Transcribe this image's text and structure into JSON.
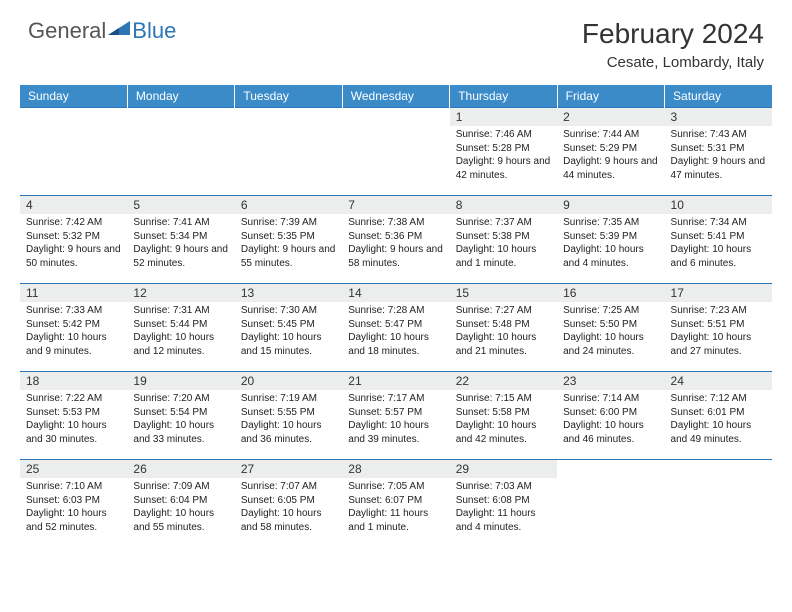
{
  "logo": {
    "text1": "General",
    "text2": "Blue"
  },
  "title": "February 2024",
  "location": "Cesate, Lombardy, Italy",
  "colors": {
    "header_bg": "#3b8bc9",
    "header_text": "#ffffff",
    "daynum_bg": "#eceded",
    "border": "#2e75b6",
    "logo_gray": "#555555",
    "logo_blue": "#2e75b6"
  },
  "day_headers": [
    "Sunday",
    "Monday",
    "Tuesday",
    "Wednesday",
    "Thursday",
    "Friday",
    "Saturday"
  ],
  "weeks": [
    [
      {
        "n": "",
        "sr": "",
        "ss": "",
        "dl": ""
      },
      {
        "n": "",
        "sr": "",
        "ss": "",
        "dl": ""
      },
      {
        "n": "",
        "sr": "",
        "ss": "",
        "dl": ""
      },
      {
        "n": "",
        "sr": "",
        "ss": "",
        "dl": ""
      },
      {
        "n": "1",
        "sr": "Sunrise: 7:46 AM",
        "ss": "Sunset: 5:28 PM",
        "dl": "Daylight: 9 hours and 42 minutes."
      },
      {
        "n": "2",
        "sr": "Sunrise: 7:44 AM",
        "ss": "Sunset: 5:29 PM",
        "dl": "Daylight: 9 hours and 44 minutes."
      },
      {
        "n": "3",
        "sr": "Sunrise: 7:43 AM",
        "ss": "Sunset: 5:31 PM",
        "dl": "Daylight: 9 hours and 47 minutes."
      }
    ],
    [
      {
        "n": "4",
        "sr": "Sunrise: 7:42 AM",
        "ss": "Sunset: 5:32 PM",
        "dl": "Daylight: 9 hours and 50 minutes."
      },
      {
        "n": "5",
        "sr": "Sunrise: 7:41 AM",
        "ss": "Sunset: 5:34 PM",
        "dl": "Daylight: 9 hours and 52 minutes."
      },
      {
        "n": "6",
        "sr": "Sunrise: 7:39 AM",
        "ss": "Sunset: 5:35 PM",
        "dl": "Daylight: 9 hours and 55 minutes."
      },
      {
        "n": "7",
        "sr": "Sunrise: 7:38 AM",
        "ss": "Sunset: 5:36 PM",
        "dl": "Daylight: 9 hours and 58 minutes."
      },
      {
        "n": "8",
        "sr": "Sunrise: 7:37 AM",
        "ss": "Sunset: 5:38 PM",
        "dl": "Daylight: 10 hours and 1 minute."
      },
      {
        "n": "9",
        "sr": "Sunrise: 7:35 AM",
        "ss": "Sunset: 5:39 PM",
        "dl": "Daylight: 10 hours and 4 minutes."
      },
      {
        "n": "10",
        "sr": "Sunrise: 7:34 AM",
        "ss": "Sunset: 5:41 PM",
        "dl": "Daylight: 10 hours and 6 minutes."
      }
    ],
    [
      {
        "n": "11",
        "sr": "Sunrise: 7:33 AM",
        "ss": "Sunset: 5:42 PM",
        "dl": "Daylight: 10 hours and 9 minutes."
      },
      {
        "n": "12",
        "sr": "Sunrise: 7:31 AM",
        "ss": "Sunset: 5:44 PM",
        "dl": "Daylight: 10 hours and 12 minutes."
      },
      {
        "n": "13",
        "sr": "Sunrise: 7:30 AM",
        "ss": "Sunset: 5:45 PM",
        "dl": "Daylight: 10 hours and 15 minutes."
      },
      {
        "n": "14",
        "sr": "Sunrise: 7:28 AM",
        "ss": "Sunset: 5:47 PM",
        "dl": "Daylight: 10 hours and 18 minutes."
      },
      {
        "n": "15",
        "sr": "Sunrise: 7:27 AM",
        "ss": "Sunset: 5:48 PM",
        "dl": "Daylight: 10 hours and 21 minutes."
      },
      {
        "n": "16",
        "sr": "Sunrise: 7:25 AM",
        "ss": "Sunset: 5:50 PM",
        "dl": "Daylight: 10 hours and 24 minutes."
      },
      {
        "n": "17",
        "sr": "Sunrise: 7:23 AM",
        "ss": "Sunset: 5:51 PM",
        "dl": "Daylight: 10 hours and 27 minutes."
      }
    ],
    [
      {
        "n": "18",
        "sr": "Sunrise: 7:22 AM",
        "ss": "Sunset: 5:53 PM",
        "dl": "Daylight: 10 hours and 30 minutes."
      },
      {
        "n": "19",
        "sr": "Sunrise: 7:20 AM",
        "ss": "Sunset: 5:54 PM",
        "dl": "Daylight: 10 hours and 33 minutes."
      },
      {
        "n": "20",
        "sr": "Sunrise: 7:19 AM",
        "ss": "Sunset: 5:55 PM",
        "dl": "Daylight: 10 hours and 36 minutes."
      },
      {
        "n": "21",
        "sr": "Sunrise: 7:17 AM",
        "ss": "Sunset: 5:57 PM",
        "dl": "Daylight: 10 hours and 39 minutes."
      },
      {
        "n": "22",
        "sr": "Sunrise: 7:15 AM",
        "ss": "Sunset: 5:58 PM",
        "dl": "Daylight: 10 hours and 42 minutes."
      },
      {
        "n": "23",
        "sr": "Sunrise: 7:14 AM",
        "ss": "Sunset: 6:00 PM",
        "dl": "Daylight: 10 hours and 46 minutes."
      },
      {
        "n": "24",
        "sr": "Sunrise: 7:12 AM",
        "ss": "Sunset: 6:01 PM",
        "dl": "Daylight: 10 hours and 49 minutes."
      }
    ],
    [
      {
        "n": "25",
        "sr": "Sunrise: 7:10 AM",
        "ss": "Sunset: 6:03 PM",
        "dl": "Daylight: 10 hours and 52 minutes."
      },
      {
        "n": "26",
        "sr": "Sunrise: 7:09 AM",
        "ss": "Sunset: 6:04 PM",
        "dl": "Daylight: 10 hours and 55 minutes."
      },
      {
        "n": "27",
        "sr": "Sunrise: 7:07 AM",
        "ss": "Sunset: 6:05 PM",
        "dl": "Daylight: 10 hours and 58 minutes."
      },
      {
        "n": "28",
        "sr": "Sunrise: 7:05 AM",
        "ss": "Sunset: 6:07 PM",
        "dl": "Daylight: 11 hours and 1 minute."
      },
      {
        "n": "29",
        "sr": "Sunrise: 7:03 AM",
        "ss": "Sunset: 6:08 PM",
        "dl": "Daylight: 11 hours and 4 minutes."
      },
      {
        "n": "",
        "sr": "",
        "ss": "",
        "dl": ""
      },
      {
        "n": "",
        "sr": "",
        "ss": "",
        "dl": ""
      }
    ]
  ]
}
